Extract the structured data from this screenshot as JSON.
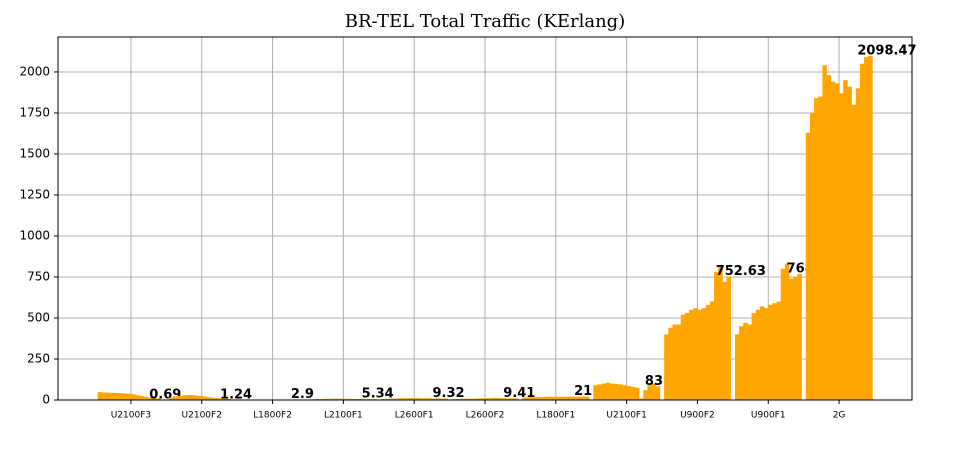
{
  "chart_data": {
    "type": "bar",
    "title": "BR-TEL Total Traffic (KErlang)",
    "categories": [
      "U2100F3",
      "U2100F2",
      "L1800F2",
      "L2100F1",
      "L2600F1",
      "L2600F2",
      "L1800F1",
      "U2100F1",
      "U900F2",
      "U900F1",
      "2G"
    ],
    "values": [
      [
        48,
        46,
        45,
        44,
        43,
        42,
        40,
        38,
        35,
        30,
        25,
        20,
        15,
        12,
        10,
        0.69
      ],
      [
        15,
        20,
        25,
        28,
        30,
        30,
        28,
        25,
        22,
        18,
        15,
        12,
        10,
        8,
        6,
        1.24
      ],
      [
        3,
        3,
        3,
        3,
        3,
        3,
        3,
        3,
        3,
        3,
        3,
        3,
        3,
        3,
        3,
        2.9
      ],
      [
        5,
        6,
        6,
        7,
        7,
        8,
        8,
        8,
        7,
        7,
        6,
        6,
        6,
        5,
        5,
        5.34
      ],
      [
        6,
        7,
        8,
        9,
        10,
        10,
        11,
        12,
        12,
        11,
        10,
        10,
        9,
        9,
        9,
        9.32
      ],
      [
        5,
        6,
        7,
        8,
        8,
        9,
        10,
        10,
        11,
        12,
        13,
        12,
        11,
        10,
        10,
        9.41
      ],
      [
        15,
        16,
        17,
        18,
        18,
        19,
        20,
        20,
        20,
        19,
        20,
        21,
        20,
        21,
        21,
        21.18
      ],
      [
        90,
        95,
        100,
        105,
        100,
        98,
        95,
        90,
        85,
        80,
        75,
        10,
        60,
        90,
        100,
        83.13
      ],
      [
        400,
        440,
        460,
        460,
        520,
        530,
        550,
        560,
        550,
        560,
        580,
        600,
        780,
        810,
        720,
        752.63
      ],
      [
        400,
        450,
        470,
        460,
        530,
        550,
        570,
        560,
        580,
        590,
        600,
        800,
        830,
        740,
        750,
        768.3
      ],
      [
        1630,
        1750,
        1840,
        1850,
        2040,
        1980,
        1940,
        1930,
        1870,
        1950,
        1910,
        1800,
        1900,
        2050,
        2090,
        2098.47
      ]
    ],
    "color": "#ffa500",
    "ylim": [
      0,
      2213
    ],
    "yticks": [
      0,
      250,
      500,
      750,
      1000,
      1250,
      1500,
      1750,
      2000
    ],
    "grid": true
  }
}
